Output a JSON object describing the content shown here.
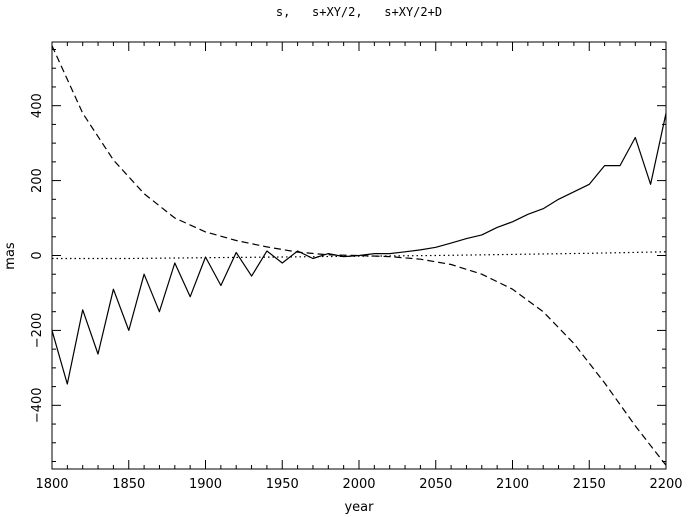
{
  "chart_data": {
    "type": "line",
    "title": "s,   s+XY/2,   s+XY/2+D",
    "xlabel": "year",
    "ylabel": "mas",
    "xlim": [
      1800,
      2200
    ],
    "ylim": [
      -570,
      570
    ],
    "xticks": [
      1800,
      1850,
      1900,
      1950,
      2000,
      2050,
      2100,
      2150,
      2200
    ],
    "yticks": [
      -400,
      -200,
      0,
      200,
      400
    ],
    "ytick_labels": [
      "−400",
      "−200",
      "0",
      "200",
      "400"
    ],
    "grid": false,
    "legend": "none",
    "series": [
      {
        "style": "dotted",
        "x": [
          1800,
          1850,
          1900,
          1950,
          2000,
          2050,
          2100,
          2150,
          2200
        ],
        "y": [
          -8,
          -8,
          -6,
          -4,
          -2,
          0,
          3,
          6,
          10
        ]
      },
      {
        "style": "solid",
        "x": [
          1800,
          1810,
          1820,
          1830,
          1840,
          1850,
          1860,
          1870,
          1880,
          1890,
          1900,
          1910,
          1920,
          1930,
          1940,
          1950,
          1960,
          1970,
          1980,
          1990,
          2000,
          2010,
          2020,
          2030,
          2040,
          2050,
          2060,
          2070,
          2080,
          2090,
          2100,
          2110,
          2120,
          2130,
          2140,
          2150,
          2160,
          2170,
          2180,
          2190,
          2200
        ],
        "y": [
          -200,
          -343,
          -145,
          -263,
          -90,
          -200,
          -50,
          -150,
          -20,
          -110,
          -4,
          -80,
          8,
          -55,
          12,
          -20,
          12,
          -8,
          5,
          -3,
          0,
          5,
          5,
          10,
          15,
          22,
          33,
          45,
          55,
          75,
          90,
          110,
          125,
          150,
          170,
          190,
          240,
          240,
          315,
          190,
          380
        ]
      },
      {
        "style": "dashed",
        "x": [
          1800,
          1820,
          1840,
          1860,
          1880,
          1900,
          1920,
          1940,
          1960,
          1980,
          2000,
          2020,
          2040,
          2060,
          2080,
          2100,
          2120,
          2140,
          2160,
          2180,
          2200
        ],
        "y": [
          560,
          380,
          255,
          165,
          100,
          63,
          40,
          23,
          9,
          2,
          0,
          -3,
          -10,
          -24,
          -50,
          -90,
          -150,
          -235,
          -340,
          -455,
          -560
        ]
      }
    ]
  }
}
